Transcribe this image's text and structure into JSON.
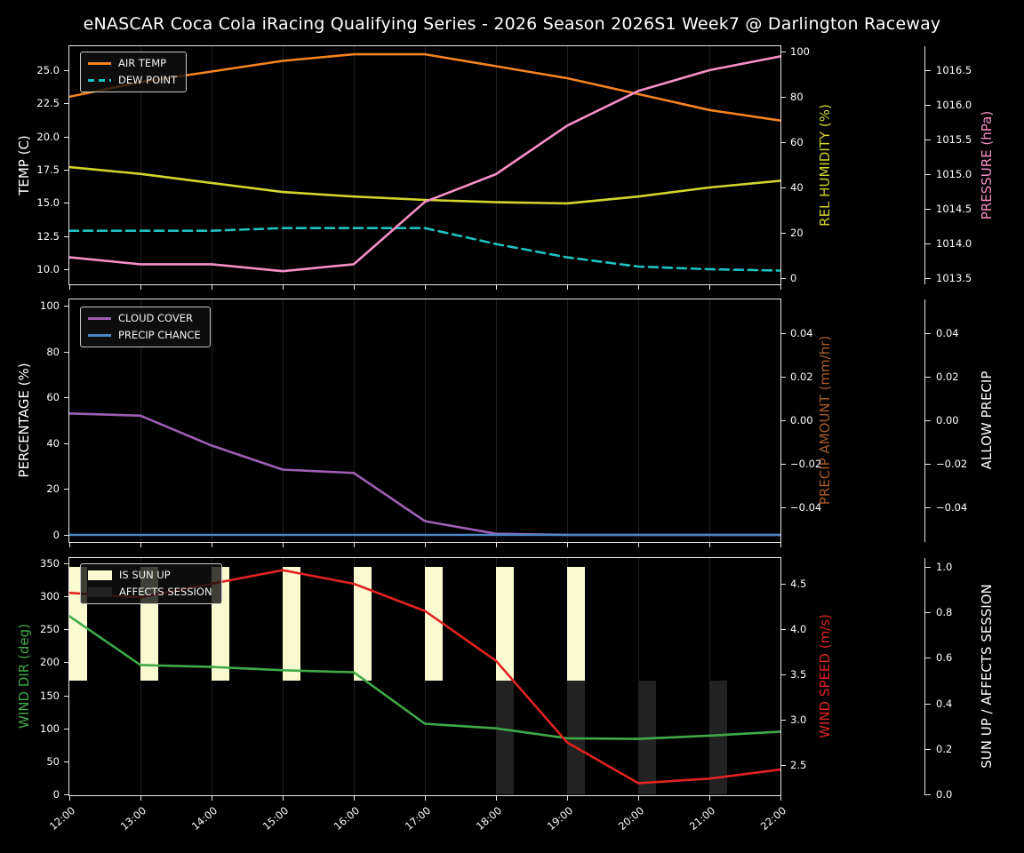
{
  "title": "eNASCAR Coca Cola iRacing Qualifying Series - 2026 Season 2026S1 Week7 @ Darlington Raceway",
  "colors": {
    "background": "#000000",
    "text": "#ffffff",
    "grid": "#1f1f1f",
    "spine": "#e8e8e8"
  },
  "x_axis": {
    "hours": [
      12,
      13,
      14,
      15,
      16,
      17,
      18,
      19,
      20,
      21,
      22
    ],
    "labels": [
      "12:00",
      "13:00",
      "14:00",
      "15:00",
      "16:00",
      "17:00",
      "18:00",
      "19:00",
      "20:00",
      "21:00",
      "22:00"
    ]
  },
  "chart_data": [
    {
      "name": "temperature-humidity-pressure",
      "type": "line",
      "x_hours": [
        12,
        13,
        14,
        15,
        16,
        17,
        18,
        19,
        20,
        21,
        22
      ],
      "series": [
        {
          "name": "AIR TEMP",
          "axis": "temp",
          "color": "#f5821f",
          "style": "solid",
          "values": [
            23.0,
            24.1,
            24.9,
            25.7,
            26.2,
            26.2,
            25.3,
            24.4,
            23.2,
            22.0,
            21.2
          ]
        },
        {
          "name": "DEW POINT",
          "axis": "temp",
          "color": "#1fc2c2",
          "style": "dashed",
          "values": [
            12.9,
            12.9,
            12.9,
            13.1,
            13.1,
            13.1,
            11.9,
            10.9,
            10.2,
            10.0,
            9.9
          ]
        },
        {
          "name": "REL HUMIDITY",
          "axis": "humidity",
          "color": "#d2d52c",
          "style": "solid",
          "values": [
            49,
            46,
            42,
            38,
            36,
            34.5,
            33.5,
            33,
            36,
            40,
            43
          ]
        },
        {
          "name": "PRESSURE",
          "axis": "pressure",
          "color": "#f78fc5",
          "style": "solid",
          "values": [
            1013.8,
            1013.7,
            1013.7,
            1013.6,
            1013.7,
            1014.6,
            1015.0,
            1015.7,
            1016.2,
            1016.5,
            1016.7
          ]
        }
      ],
      "legend": [
        {
          "label": "AIR TEMP",
          "swatch": "line",
          "dashed": false,
          "color": "#f5821f"
        },
        {
          "label": "DEW POINT",
          "swatch": "line",
          "dashed": true,
          "color": "#1fc2c2"
        }
      ],
      "axes": {
        "left": {
          "label": "TEMP (C)",
          "color": "#ffffff",
          "scale": "temp",
          "ticks": [
            {
              "v": 25.0,
              "t": "25.0"
            },
            {
              "v": 22.5,
              "t": "22.5"
            },
            {
              "v": 20.0,
              "t": "20.0"
            },
            {
              "v": 17.5,
              "t": "17.5"
            },
            {
              "v": 15.0,
              "t": "15.0"
            },
            {
              "v": 12.5,
              "t": "12.5"
            },
            {
              "v": 10.0,
              "t": "10.0"
            }
          ]
        },
        "right_inner": {
          "label": "REL HUMIDITY (%)",
          "color": "#d2d52c",
          "scale": "humidity",
          "ticks": [
            {
              "v": 100,
              "t": "100"
            },
            {
              "v": 80,
              "t": "80"
            },
            {
              "v": 60,
              "t": "60"
            },
            {
              "v": 40,
              "t": "40"
            },
            {
              "v": 20,
              "t": "20"
            },
            {
              "v": 0,
              "t": "0"
            }
          ]
        },
        "right_outer": {
          "label": "PRESSURE (hPa)",
          "color": "#f78fc5",
          "scale": "pressure",
          "ticks": [
            {
              "v": 1016.5,
              "t": "1016.5"
            },
            {
              "v": 1016.0,
              "t": "1016.0"
            },
            {
              "v": 1015.5,
              "t": "1015.5"
            },
            {
              "v": 1015.0,
              "t": "1015.0"
            },
            {
              "v": 1014.5,
              "t": "1014.5"
            },
            {
              "v": 1014.0,
              "t": "1014.0"
            },
            {
              "v": 1013.5,
              "t": "1013.5"
            }
          ]
        }
      }
    },
    {
      "name": "cloud-precip",
      "type": "line",
      "x_hours": [
        12,
        13,
        14,
        15,
        16,
        17,
        18,
        19,
        20,
        21,
        22
      ],
      "series": [
        {
          "name": "CLOUD COVER",
          "axis": "pct",
          "color": "#9e5fb5",
          "style": "solid",
          "values": [
            53,
            52,
            39,
            28.5,
            27,
            6,
            0.5,
            0,
            0,
            0,
            0
          ]
        },
        {
          "name": "PRECIP CHANCE",
          "axis": "pct",
          "color": "#4a86c8",
          "style": "solid",
          "values": [
            0,
            0,
            0,
            0,
            0,
            0,
            0,
            0,
            0,
            0,
            0
          ]
        }
      ],
      "legend": [
        {
          "label": "CLOUD COVER",
          "swatch": "line",
          "dashed": false,
          "color": "#9e5fb5"
        },
        {
          "label": "PRECIP CHANCE",
          "swatch": "line",
          "dashed": false,
          "color": "#4a86c8"
        }
      ],
      "axes": {
        "left": {
          "label": "PERCENTAGE (%)",
          "color": "#ffffff",
          "scale": "pct",
          "ticks": [
            {
              "v": 100,
              "t": "100"
            },
            {
              "v": 80,
              "t": "80"
            },
            {
              "v": 60,
              "t": "60"
            },
            {
              "v": 40,
              "t": "40"
            },
            {
              "v": 20,
              "t": "20"
            },
            {
              "v": 0,
              "t": "0"
            }
          ]
        },
        "right_inner": {
          "label": "PRECIP AMOUNT (mm/hr)",
          "color": "#a85b2a",
          "scale": "precip",
          "ticks": [
            {
              "v": 0.04,
              "t": "0.04"
            },
            {
              "v": 0.02,
              "t": "0.02"
            },
            {
              "v": 0.0,
              "t": "0.00"
            },
            {
              "v": -0.02,
              "t": "−0.02"
            },
            {
              "v": -0.04,
              "t": "−0.04"
            }
          ]
        },
        "right_outer": {
          "label": "ALLOW PRECIP",
          "color": "#ffffff",
          "scale": "precip",
          "ticks": [
            {
              "v": 0.04,
              "t": "0.04"
            },
            {
              "v": 0.02,
              "t": "0.02"
            },
            {
              "v": 0.0,
              "t": "0.00"
            },
            {
              "v": -0.02,
              "t": "−0.02"
            },
            {
              "v": -0.04,
              "t": "−0.04"
            }
          ]
        }
      }
    },
    {
      "name": "wind-sun",
      "type": "line-bar",
      "x_hours": [
        12,
        13,
        14,
        15,
        16,
        17,
        18,
        19,
        20,
        21,
        22
      ],
      "series": [
        {
          "name": "IS SUN UP",
          "type": "bar",
          "axis": "sun",
          "color": "#fafad0",
          "bar_from": 0.5,
          "bar_to": 1.0,
          "hours_on": [
            12,
            13,
            14,
            15,
            16,
            17,
            18,
            19
          ]
        },
        {
          "name": "AFFECTS SESSION",
          "type": "bar",
          "axis": "sun",
          "color": "#222222",
          "bar_from": 0.0,
          "bar_to": 0.5,
          "hours_on": [
            18,
            19,
            20,
            21
          ]
        },
        {
          "name": "WIND DIR",
          "axis": "dir",
          "color": "#3faa47",
          "style": "solid",
          "values": [
            270,
            196,
            193,
            188,
            185,
            107,
            100,
            85,
            84,
            89,
            95
          ]
        },
        {
          "name": "WIND SPEED",
          "axis": "speed",
          "color": "#e22222",
          "style": "solid",
          "values": [
            4.4,
            4.35,
            4.5,
            4.65,
            4.5,
            4.2,
            3.65,
            2.75,
            2.3,
            2.35,
            2.45
          ]
        }
      ],
      "legend": [
        {
          "label": "IS SUN UP",
          "swatch": "patch",
          "color": "#fafad0"
        },
        {
          "label": "AFFECTS SESSION",
          "swatch": "patch",
          "color": "#222222"
        }
      ],
      "axes": {
        "left": {
          "label": "WIND DIR (deg)",
          "color": "#3faa47",
          "scale": "dir",
          "ticks": [
            {
              "v": 350,
              "t": "350"
            },
            {
              "v": 300,
              "t": "300"
            },
            {
              "v": 250,
              "t": "250"
            },
            {
              "v": 200,
              "t": "200"
            },
            {
              "v": 150,
              "t": "150"
            },
            {
              "v": 100,
              "t": "100"
            },
            {
              "v": 50,
              "t": "50"
            },
            {
              "v": 0,
              "t": "0"
            }
          ]
        },
        "right_inner": {
          "label": "WIND SPEED (m/s)",
          "color": "#e22222",
          "scale": "speed",
          "ticks": [
            {
              "v": 4.5,
              "t": "4.5"
            },
            {
              "v": 4.0,
              "t": "4.0"
            },
            {
              "v": 3.5,
              "t": "3.5"
            },
            {
              "v": 3.0,
              "t": "3.0"
            },
            {
              "v": 2.5,
              "t": "2.5"
            }
          ]
        },
        "right_outer": {
          "label": "SUN UP / AFFECTS SESSION",
          "color": "#ffffff",
          "scale": "sun",
          "ticks": [
            {
              "v": 1.0,
              "t": "1.0"
            },
            {
              "v": 0.8,
              "t": "0.8"
            },
            {
              "v": 0.6,
              "t": "0.6"
            },
            {
              "v": 0.4,
              "t": "0.4"
            },
            {
              "v": 0.2,
              "t": "0.2"
            },
            {
              "v": 0.0,
              "t": "0.0"
            }
          ]
        }
      }
    }
  ]
}
